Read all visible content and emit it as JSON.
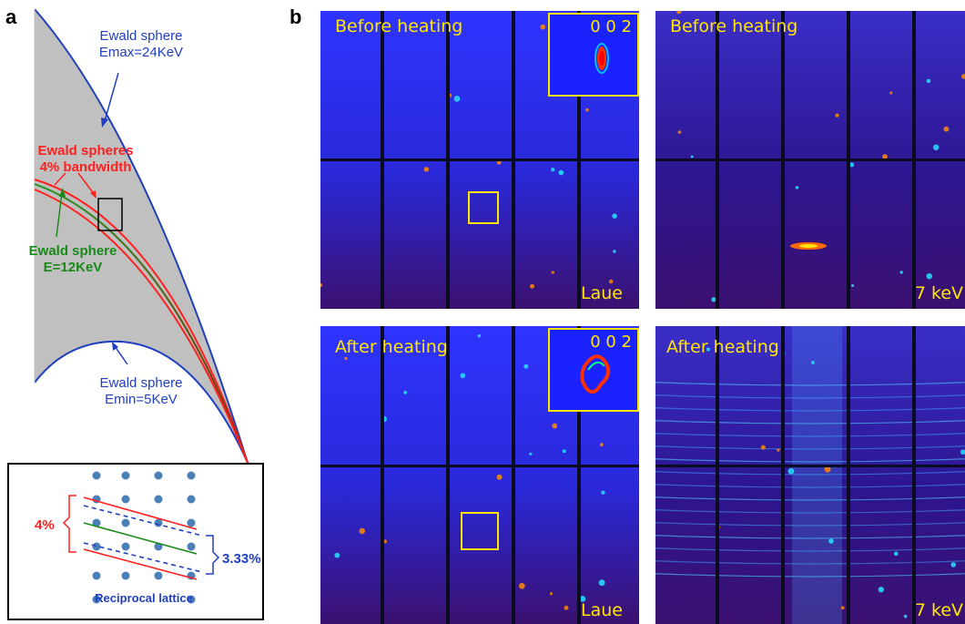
{
  "panel_a": {
    "letter": "a",
    "ewald_max": {
      "line1": "Ewald sphere",
      "line2": "Emax=24KeV"
    },
    "bandwidth": {
      "line1": "Ewald spheres",
      "line2": "4% bandwidth"
    },
    "ewald_mid": {
      "line1": "Ewald sphere",
      "line2": "E=12KeV"
    },
    "ewald_min": {
      "line1": "Ewald sphere",
      "line2": "Emin=5KeV"
    },
    "inset": {
      "red_label": "4%",
      "blue_label": "3.33%",
      "caption": "Reciprocal lattice"
    },
    "colors": {
      "gray_fill": "#c0c0c0",
      "blue": "#1f3fbf",
      "red": "#ff2020",
      "green": "#1a8a1a",
      "brown": "#7a3a1a"
    }
  },
  "panel_b": {
    "letter": "b",
    "top_left": {
      "label": "Before heating",
      "corner": "Laue",
      "inset_label": "0 0 2"
    },
    "top_right": {
      "label": "Before heating",
      "corner": "7 keV"
    },
    "bottom_left": {
      "label": "After heating",
      "corner": "Laue",
      "inset_label": "0 0 2"
    },
    "bottom_right": {
      "label": "After heating",
      "corner": "7 keV"
    },
    "colors": {
      "label_yellow": "#ffe600",
      "detector_blue": "#2a2cff",
      "detector_purple": "#3b1170"
    }
  }
}
